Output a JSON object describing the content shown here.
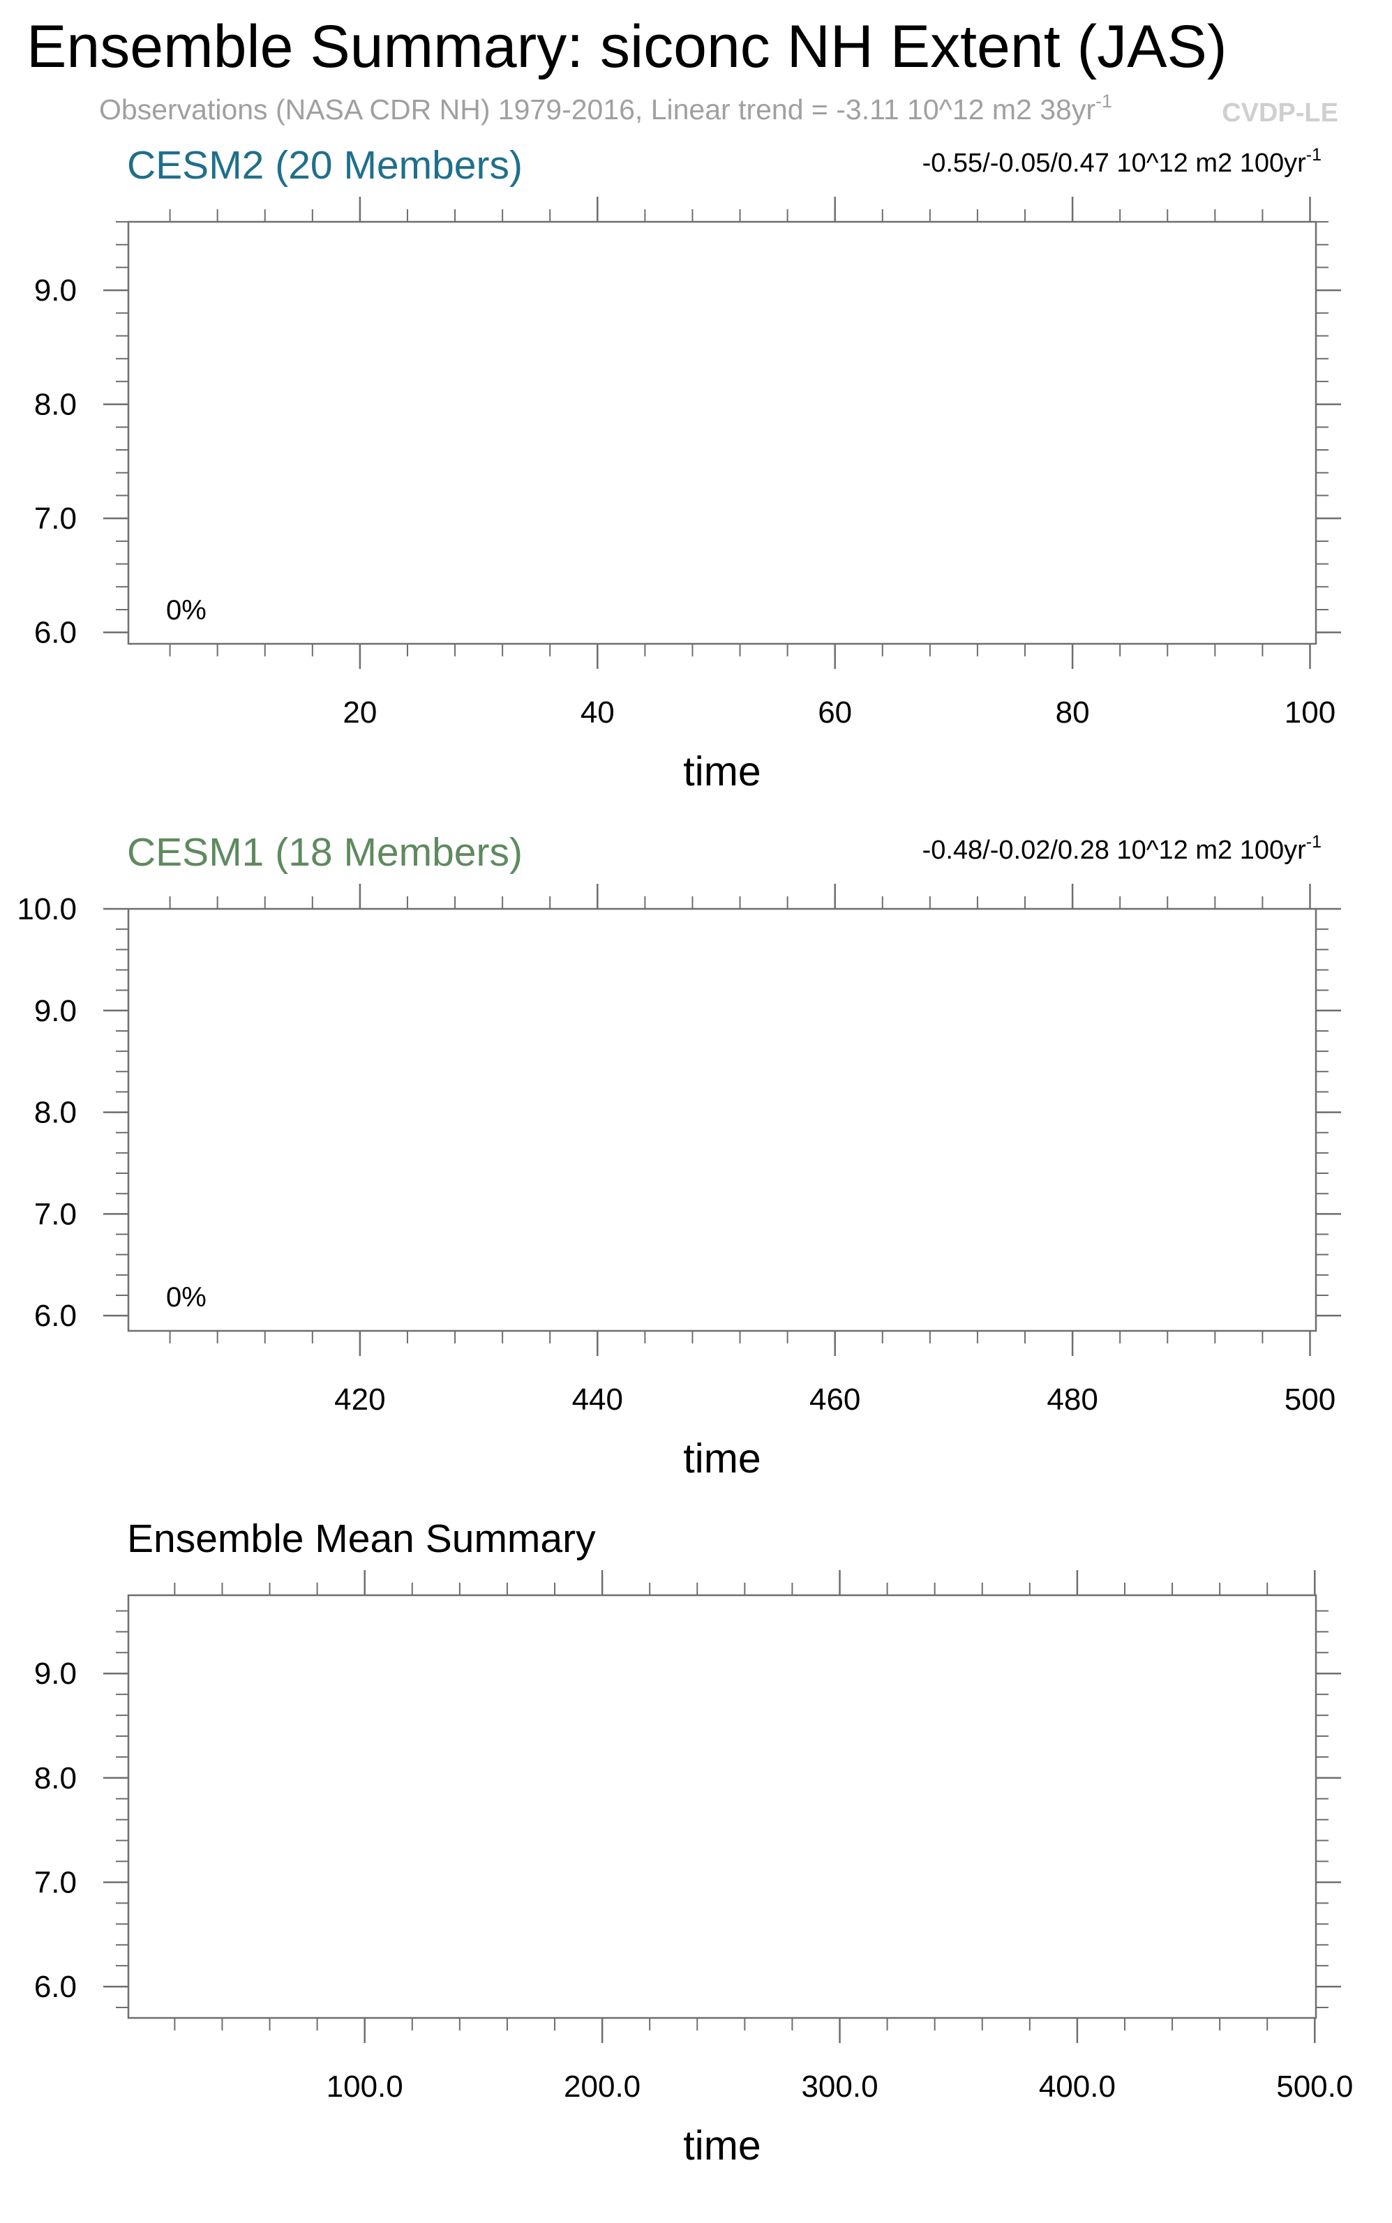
{
  "header": {
    "title": "Ensemble Summary: siconc NH Extent (JAS)",
    "subtitle": "Observations (NASA CDR NH) 1979-2016, Linear trend = -3.11 10^12 m2 38yr",
    "subtitle_sup": "-1",
    "watermark": "CVDP-LE"
  },
  "colors": {
    "cesm2": "#1f6f8b",
    "cesm1": "#5f8a5f",
    "black": "#000000",
    "frame": "#6e6e6e",
    "subtitle": "#a0a0a0",
    "watermark": "#cfcfcf"
  },
  "chart_data": [
    {
      "type": "line",
      "title": "CESM2 (20 Members)",
      "title_color": "#1f6f8b",
      "trend_label": "-0.55/-0.05/0.47 10^12 m2 100yr",
      "trend_sup": "-1",
      "percent_label": "0%",
      "xlabel": "time",
      "ylabel": "",
      "xlim": [
        0.5,
        100.5
      ],
      "ylim": [
        5.9,
        9.6
      ],
      "xticks": [
        20,
        40,
        60,
        80,
        100
      ],
      "xtick_labels": [
        "20",
        "40",
        "60",
        "80",
        "100"
      ],
      "xminor_step": 4,
      "yticks": [
        6,
        7,
        8,
        9
      ],
      "ytick_labels": [
        "6.0",
        "7.0",
        "8.0",
        "9.0"
      ],
      "yminor_step": 0.2,
      "series": [],
      "grid": false
    },
    {
      "type": "line",
      "title": "CESM1 (18 Members)",
      "title_color": "#5f8a5f",
      "trend_label": "-0.48/-0.02/0.28 10^12 m2 100yr",
      "trend_sup": "-1",
      "percent_label": "0%",
      "xlabel": "time",
      "ylabel": "",
      "xlim": [
        400.5,
        500.5
      ],
      "ylim": [
        5.85,
        10.0
      ],
      "xticks": [
        420,
        440,
        460,
        480,
        500
      ],
      "xtick_labels": [
        "420",
        "440",
        "460",
        "480",
        "500"
      ],
      "xminor_step": 4,
      "yticks": [
        6,
        7,
        8,
        9,
        10
      ],
      "ytick_labels": [
        "6.0",
        "7.0",
        "8.0",
        "9.0",
        "10.0"
      ],
      "yminor_step": 0.2,
      "series": [],
      "grid": false
    },
    {
      "type": "line",
      "title": "Ensemble Mean Summary",
      "title_color": "#000000",
      "trend_label": "",
      "trend_sup": "",
      "percent_label": "",
      "xlabel": "time",
      "ylabel": "",
      "xlim": [
        0.5,
        500.5
      ],
      "ylim": [
        5.7,
        9.75
      ],
      "xticks": [
        100,
        200,
        300,
        400,
        500
      ],
      "xtick_labels": [
        "100.0",
        "200.0",
        "300.0",
        "400.0",
        "500.0"
      ],
      "xminor_step": 20,
      "yticks": [
        6,
        7,
        8,
        9
      ],
      "ytick_labels": [
        "6.0",
        "7.0",
        "8.0",
        "9.0"
      ],
      "yminor_step": 0.2,
      "series": [],
      "grid": false
    }
  ]
}
